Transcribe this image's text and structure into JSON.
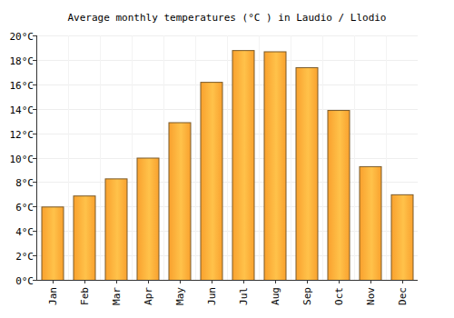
{
  "chart_data": {
    "type": "bar",
    "title": "Average monthly temperatures (°C ) in Laudio / Llodio",
    "categories": [
      "Jan",
      "Feb",
      "Mar",
      "Apr",
      "May",
      "Jun",
      "Jul",
      "Aug",
      "Sep",
      "Oct",
      "Nov",
      "Dec"
    ],
    "values": [
      6.0,
      6.9,
      8.3,
      10.0,
      12.9,
      16.2,
      18.8,
      18.7,
      17.4,
      13.9,
      9.3,
      7.0
    ],
    "color": "#f9a12e",
    "ylim": [
      0,
      20
    ],
    "yticks": [
      {
        "value": 0,
        "label": "0°C"
      },
      {
        "value": 2,
        "label": "2°C"
      },
      {
        "value": 4,
        "label": "4°C"
      },
      {
        "value": 6,
        "label": "6°C"
      },
      {
        "value": 8,
        "label": "8°C"
      },
      {
        "value": 10,
        "label": "10°C"
      },
      {
        "value": 12,
        "label": "12°C"
      },
      {
        "value": 14,
        "label": "14°C"
      },
      {
        "value": 16,
        "label": "16°C"
      },
      {
        "value": 18,
        "label": "18°C"
      },
      {
        "value": 20,
        "label": "20°C"
      }
    ],
    "grid": true
  }
}
